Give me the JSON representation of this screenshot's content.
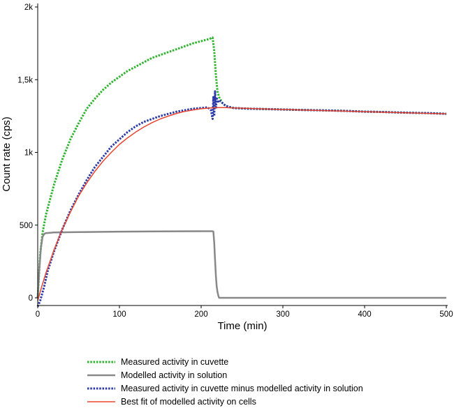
{
  "chart_data": {
    "type": "line",
    "title": "",
    "xlabel": "Time (min)",
    "ylabel": "Count rate (cps)",
    "xlim": [
      0,
      500
    ],
    "ylim": [
      -50,
      2000
    ],
    "x_ticks": [
      {
        "value": 0,
        "label": "0"
      },
      {
        "value": 100,
        "label": "100"
      },
      {
        "value": 200,
        "label": "200"
      },
      {
        "value": 300,
        "label": "300"
      },
      {
        "value": 400,
        "label": "400"
      },
      {
        "value": 500,
        "label": "500"
      }
    ],
    "y_ticks": [
      {
        "value": 0,
        "label": "0"
      },
      {
        "value": 500,
        "label": "500"
      },
      {
        "value": 1000,
        "label": "1k"
      },
      {
        "value": 1500,
        "label": "1,5k"
      },
      {
        "value": 2000,
        "label": "2k"
      }
    ],
    "grid": false,
    "legend_position": "bottom",
    "series": [
      {
        "name": "Measured activity in cuvette",
        "color": "#2db52d",
        "style": "dotted",
        "x": [
          0,
          3,
          6,
          10,
          20,
          30,
          40,
          50,
          60,
          70,
          80,
          90,
          100,
          110,
          120,
          130,
          140,
          150,
          160,
          170,
          180,
          190,
          200,
          210,
          214,
          216,
          218,
          220,
          222,
          226,
          230,
          235,
          240,
          260,
          280,
          300,
          320,
          340,
          360,
          380,
          400,
          420,
          440,
          460,
          480,
          500
        ],
        "y": [
          0,
          300,
          450,
          570,
          780,
          950,
          1090,
          1200,
          1300,
          1370,
          1430,
          1480,
          1520,
          1560,
          1590,
          1620,
          1650,
          1670,
          1690,
          1710,
          1730,
          1750,
          1765,
          1780,
          1790,
          1700,
          1530,
          1420,
          1380,
          1340,
          1320,
          1310,
          1305,
          1300,
          1298,
          1295,
          1292,
          1290,
          1288,
          1285,
          1280,
          1278,
          1275,
          1272,
          1270,
          1265
        ]
      },
      {
        "name": "Modelled activity in solution",
        "color": "#888888",
        "style": "solid",
        "x": [
          0,
          2,
          4,
          6,
          8,
          10,
          20,
          50,
          100,
          150,
          200,
          214,
          215,
          216,
          217,
          218,
          219,
          220,
          221,
          222,
          500
        ],
        "y": [
          0,
          200,
          350,
          420,
          440,
          445,
          450,
          452,
          455,
          457,
          458,
          458,
          455,
          380,
          260,
          150,
          80,
          40,
          15,
          0,
          0
        ]
      },
      {
        "name": "Measured activity in cuvette minus modelled activity in solution",
        "color": "#2b3aa8",
        "style": "dotted",
        "x": [
          0,
          3,
          5,
          8,
          12,
          20,
          30,
          40,
          50,
          60,
          70,
          80,
          90,
          100,
          110,
          120,
          130,
          140,
          150,
          160,
          170,
          180,
          190,
          200,
          208,
          212,
          214,
          215,
          216,
          217,
          218,
          219,
          220,
          222,
          226,
          230,
          240,
          260,
          280,
          300,
          320,
          340,
          360,
          380,
          400,
          420,
          440,
          460,
          480,
          500
        ],
        "y": [
          -60,
          -20,
          20,
          80,
          180,
          320,
          470,
          600,
          710,
          810,
          900,
          970,
          1040,
          1090,
          1140,
          1180,
          1210,
          1230,
          1250,
          1265,
          1280,
          1290,
          1300,
          1305,
          1310,
          1290,
          1230,
          1380,
          1250,
          1420,
          1300,
          1380,
          1340,
          1360,
          1340,
          1320,
          1305,
          1300,
          1298,
          1295,
          1292,
          1290,
          1288,
          1285,
          1280,
          1278,
          1275,
          1272,
          1270,
          1265
        ]
      },
      {
        "name": "Best fit of modelled activity on cells",
        "color": "#e8432e",
        "style": "solid",
        "x": [
          0,
          5,
          10,
          20,
          30,
          40,
          50,
          60,
          70,
          80,
          90,
          100,
          110,
          120,
          130,
          140,
          150,
          160,
          170,
          180,
          190,
          200,
          210,
          220,
          230,
          240,
          260,
          280,
          300,
          320,
          340,
          360,
          380,
          400,
          420,
          440,
          460,
          480,
          500
        ],
        "y": [
          -20,
          80,
          170,
          330,
          470,
          590,
          700,
          790,
          870,
          940,
          1000,
          1055,
          1100,
          1140,
          1175,
          1205,
          1230,
          1250,
          1268,
          1282,
          1292,
          1300,
          1305,
          1308,
          1308,
          1306,
          1302,
          1298,
          1295,
          1292,
          1289,
          1286,
          1283,
          1280,
          1277,
          1274,
          1271,
          1268,
          1265
        ]
      }
    ]
  }
}
